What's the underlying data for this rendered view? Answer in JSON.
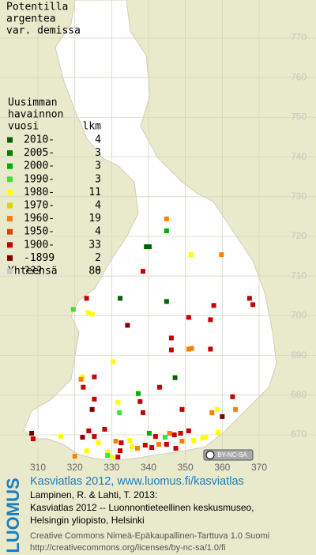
{
  "title": [
    "Potentilla",
    "argentea",
    "var. demissa"
  ],
  "legend": {
    "heading": [
      "Uusimman",
      "havainnon"
    ],
    "col1": "vuosi",
    "col2": "lkm",
    "rows": [
      {
        "label": "2010-",
        "count": 4,
        "color": "#006400"
      },
      {
        "label": "2005-",
        "count": 3,
        "color": "#008000"
      },
      {
        "label": "2000-",
        "count": 3,
        "color": "#00b000"
      },
      {
        "label": "1990-",
        "count": 3,
        "color": "#40e040"
      },
      {
        "label": "1980-",
        "count": 11,
        "color": "#ffff00"
      },
      {
        "label": "1970-",
        "count": 4,
        "color": "#d8d800"
      },
      {
        "label": "1960-",
        "count": 19,
        "color": "#ff8000"
      },
      {
        "label": "1950-",
        "count": 4,
        "color": "#e04000"
      },
      {
        "label": "1900-",
        "count": 33,
        "color": "#c80000"
      },
      {
        "label": "-1899",
        "count": 2,
        "color": "#800000"
      },
      {
        "label": "???",
        "count": 0,
        "color": "#c8c8c8"
      }
    ],
    "total_label": "Yhteensä",
    "total": 86
  },
  "map": {
    "xticks": [
      310,
      320,
      330,
      340,
      350,
      360,
      370
    ],
    "yticks": [
      670,
      680,
      690,
      700,
      710,
      720,
      730,
      740,
      750,
      760,
      770
    ],
    "points": [
      [
        344.9,
        724.4,
        6
      ],
      [
        344.9,
        721.4,
        2
      ],
      [
        339.4,
        717.4,
        0
      ],
      [
        340.2,
        717.4,
        0
      ],
      [
        359.8,
        715.4,
        6
      ],
      [
        351.5,
        715.4,
        4
      ],
      [
        338.5,
        711.2,
        8
      ],
      [
        323.2,
        704.4,
        8
      ],
      [
        332.3,
        704.4,
        0
      ],
      [
        344.9,
        703.6,
        0
      ],
      [
        357.7,
        702.6,
        8
      ],
      [
        367.4,
        704.4,
        8
      ],
      [
        368.3,
        702.8,
        8
      ],
      [
        319.6,
        701.6,
        3
      ],
      [
        323.6,
        700.8,
        4
      ],
      [
        324.7,
        700.4,
        4
      ],
      [
        334.3,
        697.6,
        9
      ],
      [
        350.9,
        699.6,
        8
      ],
      [
        356.8,
        699.0,
        8
      ],
      [
        346.2,
        694.4,
        8
      ],
      [
        346.2,
        691.4,
        8
      ],
      [
        350.9,
        691.6,
        6
      ],
      [
        351.7,
        691.8,
        6
      ],
      [
        356.8,
        691.6,
        8
      ],
      [
        330.4,
        688.4,
        4
      ],
      [
        322.1,
        684.6,
        4
      ],
      [
        321.7,
        684.0,
        6
      ],
      [
        322.3,
        682.0,
        8
      ],
      [
        343.0,
        682.0,
        8
      ],
      [
        347.2,
        684.4,
        0
      ],
      [
        325.3,
        684.6,
        8
      ],
      [
        337.2,
        680.4,
        2
      ],
      [
        337.7,
        678.4,
        8
      ],
      [
        362.8,
        679.6,
        8
      ],
      [
        325.3,
        679.0,
        8
      ],
      [
        331.7,
        678.2,
        4
      ],
      [
        324.7,
        676.4,
        9
      ],
      [
        338.5,
        675.6,
        8
      ],
      [
        332.1,
        675.6,
        3
      ],
      [
        349.1,
        676.4,
        8
      ],
      [
        357.2,
        675.6,
        6
      ],
      [
        358.7,
        676.4,
        4
      ],
      [
        360.0,
        674.6,
        9
      ],
      [
        363.6,
        676.4,
        6
      ],
      [
        308.3,
        670.4,
        9
      ],
      [
        308.7,
        669.0,
        8
      ],
      [
        322.1,
        669.4,
        9
      ],
      [
        323.8,
        671.0,
        8
      ],
      [
        325.3,
        669.6,
        8
      ],
      [
        328.1,
        671.4,
        8
      ],
      [
        316.2,
        669.6,
        4
      ],
      [
        340.2,
        670.4,
        2
      ],
      [
        341.9,
        669.6,
        8
      ],
      [
        344.5,
        669.4,
        3
      ],
      [
        345.7,
        670.4,
        6
      ],
      [
        347.0,
        670.0,
        8
      ],
      [
        348.7,
        670.4,
        8
      ],
      [
        350.9,
        671.0,
        8
      ],
      [
        352.3,
        668.6,
        4
      ],
      [
        354.7,
        669.2,
        4
      ],
      [
        355.5,
        669.4,
        4
      ],
      [
        358.9,
        670.6,
        4
      ],
      [
        326.4,
        668.0,
        4
      ],
      [
        331.1,
        668.4,
        6
      ],
      [
        332.6,
        668.0,
        8
      ],
      [
        334.9,
        668.6,
        4
      ],
      [
        335.5,
        667.0,
        4
      ],
      [
        337.0,
        666.6,
        6
      ],
      [
        339.1,
        667.4,
        8
      ],
      [
        340.9,
        666.8,
        8
      ],
      [
        342.8,
        667.6,
        6
      ],
      [
        344.9,
        667.6,
        8
      ],
      [
        347.4,
        666.6,
        8
      ],
      [
        349.1,
        668.4,
        6
      ],
      [
        320.0,
        664.6,
        6
      ],
      [
        323.2,
        666.0,
        4
      ],
      [
        328.9,
        665.6,
        4
      ],
      [
        328.9,
        664.8,
        3
      ],
      [
        330.2,
        664.4,
        4
      ],
      [
        331.7,
        664.4,
        8
      ],
      [
        332.3,
        666.0,
        8
      ]
    ]
  },
  "badge": "BY-NC-SA",
  "footer": {
    "logo": "LUOMUS",
    "link": "Kasviatlas 2012, www.luomus.fi/kasviatlas",
    "citation": [
      "Lampinen, R. & Lahti, T. 2013:",
      "Kasviatlas 2012 -- Luonnontieteellinen keskusmuseo,",
      "Helsingin yliopisto, Helsinki"
    ],
    "license": [
      "Creative Commons Nimeä-Epäkaupallinen-Tarttuva 1.0 Suomi",
      "http://creativecommons.org/licenses/by-nc-sa/1.0/fi"
    ]
  }
}
